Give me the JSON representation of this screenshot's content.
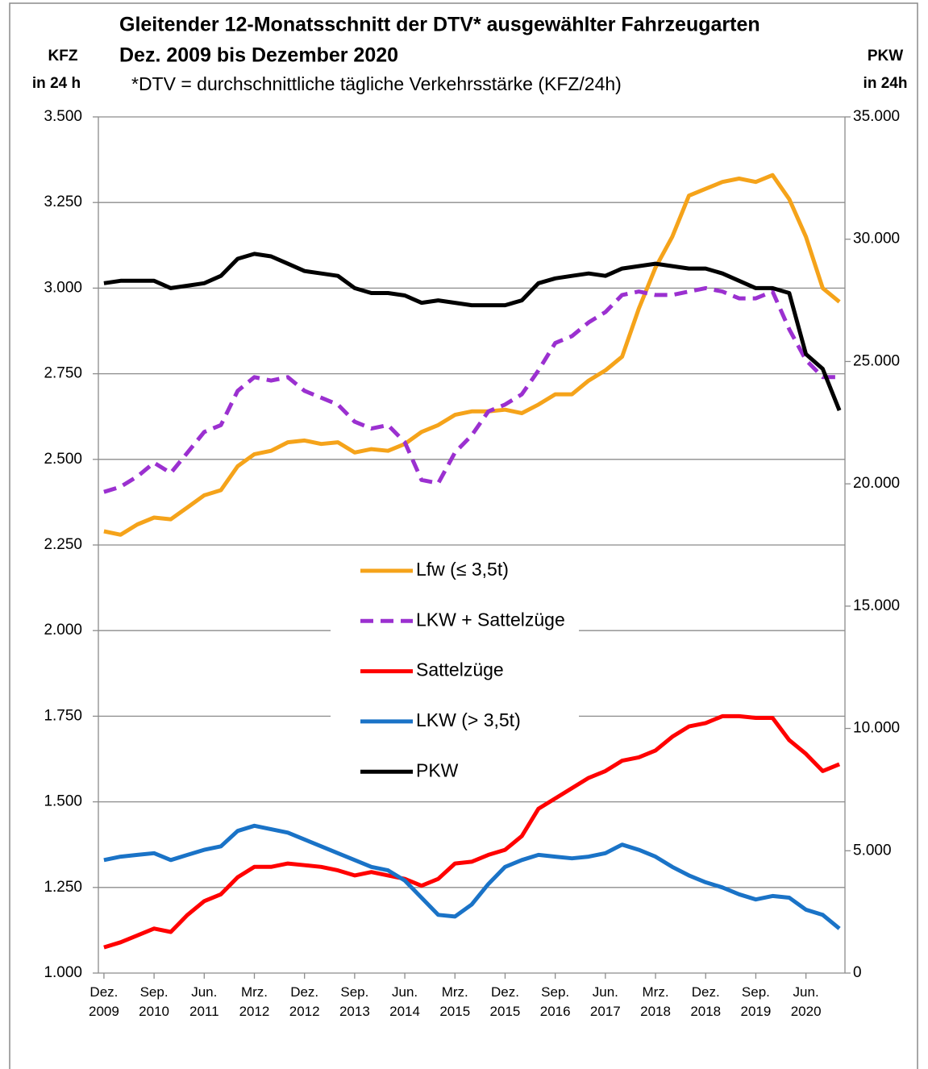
{
  "chart_data": {
    "type": "line",
    "title": [
      "Gleitender 12-Monatsschnitt der DTV* ausgewählter Fahrzeugarten",
      "Dez. 2009 bis Dezember 2020"
    ],
    "subtitle": "*DTV = durchschnittliche tägliche Verkehrsstärke (KFZ/24h)",
    "ylabel": [
      "KFZ",
      "in 24 h"
    ],
    "y2label": [
      "PKW",
      "in 24h"
    ],
    "x": [
      "2009-12",
      "2010-03",
      "2010-06",
      "2010-09",
      "2010-12",
      "2011-03",
      "2011-06",
      "2011-09",
      "2011-12",
      "2012-03",
      "2012-06",
      "2012-09",
      "2012-12",
      "2013-03",
      "2013-06",
      "2013-09",
      "2013-12",
      "2014-03",
      "2014-06",
      "2014-09",
      "2014-12",
      "2015-03",
      "2015-06",
      "2015-09",
      "2015-12",
      "2016-03",
      "2016-06",
      "2016-09",
      "2016-12",
      "2017-03",
      "2017-06",
      "2017-09",
      "2017-12",
      "2018-03",
      "2018-06",
      "2018-09",
      "2018-12",
      "2019-03",
      "2019-06",
      "2019-09",
      "2019-12",
      "2020-03",
      "2020-06",
      "2020-09",
      "2020-12"
    ],
    "xlim": [
      "2009-11",
      "2021-01"
    ],
    "xticks": [
      {
        "value": "2009-12",
        "label": "Dez. 2009"
      },
      {
        "value": "2010-09",
        "label": "Sep. 2010"
      },
      {
        "value": "2011-06",
        "label": "Jun. 2011"
      },
      {
        "value": "2012-03",
        "label": "Mrz. 2012"
      },
      {
        "value": "2012-12",
        "label": "Dez. 2012"
      },
      {
        "value": "2013-09",
        "label": "Sep. 2013"
      },
      {
        "value": "2014-06",
        "label": "Jun. 2014"
      },
      {
        "value": "2015-03",
        "label": "Mrz. 2015"
      },
      {
        "value": "2015-12",
        "label": "Dez. 2015"
      },
      {
        "value": "2016-09",
        "label": "Sep. 2016"
      },
      {
        "value": "2017-06",
        "label": "Jun. 2017"
      },
      {
        "value": "2018-03",
        "label": "Mrz. 2018"
      },
      {
        "value": "2018-12",
        "label": "Dez. 2018"
      },
      {
        "value": "2019-09",
        "label": "Sep. 2019"
      },
      {
        "value": "2020-06",
        "label": "Jun. 2020"
      }
    ],
    "ylim": [
      1000,
      3500
    ],
    "yticks": [
      {
        "value": 1000,
        "label": "1.000"
      },
      {
        "value": 1250,
        "label": "1.250"
      },
      {
        "value": 1500,
        "label": "1.500"
      },
      {
        "value": 1750,
        "label": "1.750"
      },
      {
        "value": 2000,
        "label": "2.000"
      },
      {
        "value": 2250,
        "label": "2.250"
      },
      {
        "value": 2500,
        "label": "2.500"
      },
      {
        "value": 2750,
        "label": "2.750"
      },
      {
        "value": 3000,
        "label": "3.000"
      },
      {
        "value": 3250,
        "label": "3.250"
      },
      {
        "value": 3500,
        "label": "3.500"
      }
    ],
    "y2lim": [
      0,
      35000
    ],
    "y2ticks": [
      0,
      {
        "value": 5000,
        "label": "5.000"
      },
      {
        "value": 10000,
        "label": "10.000"
      },
      {
        "value": 15000,
        "label": "15.000"
      },
      {
        "value": 20000,
        "label": "20.000"
      },
      {
        "value": 25000,
        "label": "25.000"
      },
      {
        "value": 30000,
        "label": "30.000"
      },
      {
        "value": 35000,
        "label": "35.000"
      }
    ],
    "grid": true,
    "series": [
      {
        "name": "Lfw (≤ 3,5t)",
        "color": "#f5a31a",
        "style": "solid",
        "values": [
          2290,
          2280,
          2310,
          2330,
          2325,
          2360,
          2395,
          2410,
          2480,
          2515,
          2525,
          2550,
          2555,
          2545,
          2550,
          2520,
          2530,
          2525,
          2545,
          2580,
          2600,
          2630,
          2640,
          2640,
          2645,
          2635,
          2660,
          2690,
          2690,
          2730,
          2760,
          2800,
          2940,
          3060,
          3150,
          3270,
          3290,
          3310,
          3320,
          3310,
          3330,
          3260,
          3150,
          3000,
          2960
        ]
      },
      {
        "name": "LKW + Sattelzüge",
        "color": "#9b30d0",
        "style": "dashed",
        "values": [
          2405,
          2420,
          2450,
          2490,
          2460,
          2520,
          2580,
          2600,
          2700,
          2740,
          2730,
          2740,
          2700,
          2680,
          2660,
          2610,
          2590,
          2600,
          2550,
          2440,
          2430,
          2520,
          2570,
          2640,
          2660,
          2690,
          2760,
          2840,
          2860,
          2900,
          2930,
          2980,
          2990,
          2980,
          2980,
          2990,
          3000,
          2990,
          2970,
          2970,
          2990,
          2880,
          2790,
          2740,
          2740
        ]
      },
      {
        "name": "Sattelzüge",
        "color": "#ff0000",
        "style": "solid",
        "values": [
          1075,
          1090,
          1110,
          1130,
          1120,
          1170,
          1210,
          1230,
          1280,
          1310,
          1310,
          1320,
          1315,
          1310,
          1300,
          1285,
          1295,
          1285,
          1275,
          1255,
          1275,
          1320,
          1325,
          1345,
          1360,
          1400,
          1480,
          1510,
          1540,
          1570,
          1590,
          1620,
          1630,
          1650,
          1690,
          1720,
          1730,
          1750,
          1750,
          1745,
          1745,
          1680,
          1640,
          1590,
          1610
        ]
      },
      {
        "name": "LKW (> 3,5t)",
        "color": "#1a73c7",
        "style": "solid",
        "values": [
          1330,
          1340,
          1345,
          1350,
          1330,
          1345,
          1360,
          1370,
          1415,
          1430,
          1420,
          1410,
          1390,
          1370,
          1350,
          1330,
          1310,
          1300,
          1270,
          1220,
          1170,
          1165,
          1200,
          1260,
          1310,
          1330,
          1345,
          1340,
          1335,
          1340,
          1350,
          1375,
          1360,
          1340,
          1310,
          1285,
          1265,
          1250,
          1230,
          1215,
          1225,
          1220,
          1185,
          1170,
          1130
        ]
      },
      {
        "name": "PKW",
        "color": "#000000",
        "style": "solid",
        "axis": "y2",
        "values": [
          28200,
          28300,
          28300,
          28300,
          28000,
          28100,
          28200,
          28500,
          29200,
          29400,
          29300,
          29000,
          28700,
          28600,
          28500,
          28000,
          27800,
          27800,
          27700,
          27400,
          27500,
          27400,
          27300,
          27300,
          27300,
          27500,
          28200,
          28400,
          28500,
          28600,
          28500,
          28800,
          28900,
          29000,
          28900,
          28800,
          28800,
          28600,
          28300,
          28000,
          28000,
          27800,
          25300,
          24700,
          23000
        ]
      }
    ]
  }
}
